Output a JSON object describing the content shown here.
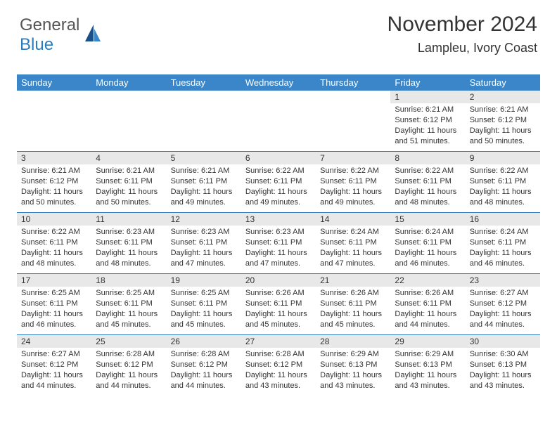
{
  "brand": {
    "part1": "General",
    "part2": "Blue"
  },
  "title": "November 2024",
  "location": "Lampleu, Ivory Coast",
  "colors": {
    "header_bg": "#3a86c8",
    "rule": "#2b7bbd",
    "daynum_bg": "#e8e8e8",
    "text": "#333333",
    "brand_blue": "#2b7bbd",
    "brand_gray": "#555555"
  },
  "layout": {
    "type": "calendar",
    "cols": 7,
    "rows": 5,
    "aspect": "792x612"
  },
  "day_names": [
    "Sunday",
    "Monday",
    "Tuesday",
    "Wednesday",
    "Thursday",
    "Friday",
    "Saturday"
  ],
  "weeks": [
    [
      {
        "empty": true
      },
      {
        "empty": true
      },
      {
        "empty": true
      },
      {
        "empty": true
      },
      {
        "empty": true
      },
      {
        "day": "1",
        "sunrise": "Sunrise: 6:21 AM",
        "sunset": "Sunset: 6:12 PM",
        "daylight": "Daylight: 11 hours and 51 minutes."
      },
      {
        "day": "2",
        "sunrise": "Sunrise: 6:21 AM",
        "sunset": "Sunset: 6:12 PM",
        "daylight": "Daylight: 11 hours and 50 minutes."
      }
    ],
    [
      {
        "day": "3",
        "sunrise": "Sunrise: 6:21 AM",
        "sunset": "Sunset: 6:12 PM",
        "daylight": "Daylight: 11 hours and 50 minutes."
      },
      {
        "day": "4",
        "sunrise": "Sunrise: 6:21 AM",
        "sunset": "Sunset: 6:11 PM",
        "daylight": "Daylight: 11 hours and 50 minutes."
      },
      {
        "day": "5",
        "sunrise": "Sunrise: 6:21 AM",
        "sunset": "Sunset: 6:11 PM",
        "daylight": "Daylight: 11 hours and 49 minutes."
      },
      {
        "day": "6",
        "sunrise": "Sunrise: 6:22 AM",
        "sunset": "Sunset: 6:11 PM",
        "daylight": "Daylight: 11 hours and 49 minutes."
      },
      {
        "day": "7",
        "sunrise": "Sunrise: 6:22 AM",
        "sunset": "Sunset: 6:11 PM",
        "daylight": "Daylight: 11 hours and 49 minutes."
      },
      {
        "day": "8",
        "sunrise": "Sunrise: 6:22 AM",
        "sunset": "Sunset: 6:11 PM",
        "daylight": "Daylight: 11 hours and 48 minutes."
      },
      {
        "day": "9",
        "sunrise": "Sunrise: 6:22 AM",
        "sunset": "Sunset: 6:11 PM",
        "daylight": "Daylight: 11 hours and 48 minutes."
      }
    ],
    [
      {
        "day": "10",
        "sunrise": "Sunrise: 6:22 AM",
        "sunset": "Sunset: 6:11 PM",
        "daylight": "Daylight: 11 hours and 48 minutes."
      },
      {
        "day": "11",
        "sunrise": "Sunrise: 6:23 AM",
        "sunset": "Sunset: 6:11 PM",
        "daylight": "Daylight: 11 hours and 48 minutes."
      },
      {
        "day": "12",
        "sunrise": "Sunrise: 6:23 AM",
        "sunset": "Sunset: 6:11 PM",
        "daylight": "Daylight: 11 hours and 47 minutes."
      },
      {
        "day": "13",
        "sunrise": "Sunrise: 6:23 AM",
        "sunset": "Sunset: 6:11 PM",
        "daylight": "Daylight: 11 hours and 47 minutes."
      },
      {
        "day": "14",
        "sunrise": "Sunrise: 6:24 AM",
        "sunset": "Sunset: 6:11 PM",
        "daylight": "Daylight: 11 hours and 47 minutes."
      },
      {
        "day": "15",
        "sunrise": "Sunrise: 6:24 AM",
        "sunset": "Sunset: 6:11 PM",
        "daylight": "Daylight: 11 hours and 46 minutes."
      },
      {
        "day": "16",
        "sunrise": "Sunrise: 6:24 AM",
        "sunset": "Sunset: 6:11 PM",
        "daylight": "Daylight: 11 hours and 46 minutes."
      }
    ],
    [
      {
        "day": "17",
        "sunrise": "Sunrise: 6:25 AM",
        "sunset": "Sunset: 6:11 PM",
        "daylight": "Daylight: 11 hours and 46 minutes."
      },
      {
        "day": "18",
        "sunrise": "Sunrise: 6:25 AM",
        "sunset": "Sunset: 6:11 PM",
        "daylight": "Daylight: 11 hours and 45 minutes."
      },
      {
        "day": "19",
        "sunrise": "Sunrise: 6:25 AM",
        "sunset": "Sunset: 6:11 PM",
        "daylight": "Daylight: 11 hours and 45 minutes."
      },
      {
        "day": "20",
        "sunrise": "Sunrise: 6:26 AM",
        "sunset": "Sunset: 6:11 PM",
        "daylight": "Daylight: 11 hours and 45 minutes."
      },
      {
        "day": "21",
        "sunrise": "Sunrise: 6:26 AM",
        "sunset": "Sunset: 6:11 PM",
        "daylight": "Daylight: 11 hours and 45 minutes."
      },
      {
        "day": "22",
        "sunrise": "Sunrise: 6:26 AM",
        "sunset": "Sunset: 6:11 PM",
        "daylight": "Daylight: 11 hours and 44 minutes."
      },
      {
        "day": "23",
        "sunrise": "Sunrise: 6:27 AM",
        "sunset": "Sunset: 6:12 PM",
        "daylight": "Daylight: 11 hours and 44 minutes."
      }
    ],
    [
      {
        "day": "24",
        "sunrise": "Sunrise: 6:27 AM",
        "sunset": "Sunset: 6:12 PM",
        "daylight": "Daylight: 11 hours and 44 minutes."
      },
      {
        "day": "25",
        "sunrise": "Sunrise: 6:28 AM",
        "sunset": "Sunset: 6:12 PM",
        "daylight": "Daylight: 11 hours and 44 minutes."
      },
      {
        "day": "26",
        "sunrise": "Sunrise: 6:28 AM",
        "sunset": "Sunset: 6:12 PM",
        "daylight": "Daylight: 11 hours and 44 minutes."
      },
      {
        "day": "27",
        "sunrise": "Sunrise: 6:28 AM",
        "sunset": "Sunset: 6:12 PM",
        "daylight": "Daylight: 11 hours and 43 minutes."
      },
      {
        "day": "28",
        "sunrise": "Sunrise: 6:29 AM",
        "sunset": "Sunset: 6:13 PM",
        "daylight": "Daylight: 11 hours and 43 minutes."
      },
      {
        "day": "29",
        "sunrise": "Sunrise: 6:29 AM",
        "sunset": "Sunset: 6:13 PM",
        "daylight": "Daylight: 11 hours and 43 minutes."
      },
      {
        "day": "30",
        "sunrise": "Sunrise: 6:30 AM",
        "sunset": "Sunset: 6:13 PM",
        "daylight": "Daylight: 11 hours and 43 minutes."
      }
    ]
  ]
}
